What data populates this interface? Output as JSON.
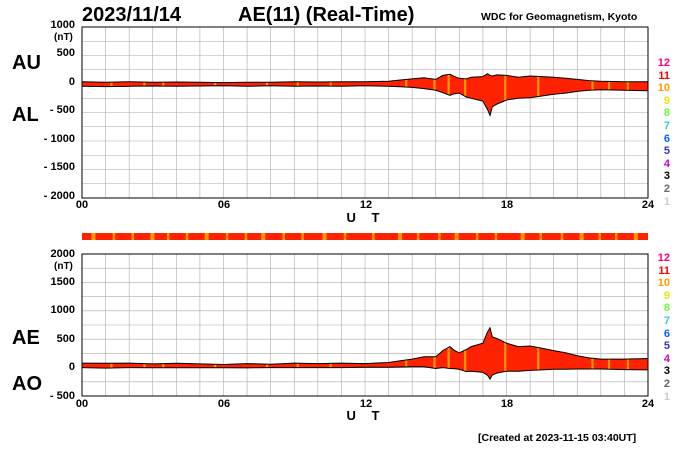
{
  "header": {
    "date": "2023/11/14",
    "title": "AE(11) (Real-Time)",
    "source": "WDC for Geomagnetism, Kyoto",
    "created": "[Created at 2023-11-15 03:40UT]"
  },
  "legend": {
    "items": [
      "12",
      "11",
      "10",
      "9",
      "8",
      "7",
      "6",
      "5",
      "4",
      "3",
      "2",
      "1"
    ],
    "colors": [
      "#ff0080",
      "#ff0000",
      "#ff9900",
      "#e6e600",
      "#66ff33",
      "#33cccc",
      "#0066ff",
      "#3333cc",
      "#cc00cc",
      "#000000",
      "#666666",
      "#cccccc"
    ]
  },
  "colors": {
    "fill_primary": "#ff2200",
    "fill_secondary": "#ff9900",
    "outline": "#000000",
    "grid": "#aaaaaa"
  },
  "chart_data": [
    {
      "type": "area",
      "name": "AU/AL",
      "series_labels": [
        "AU",
        "AL"
      ],
      "unit": "(nT)",
      "xlabel": "U T",
      "xlim": [
        0,
        24
      ],
      "x_tick_labels": [
        "00",
        "06",
        "12",
        "18",
        "24"
      ],
      "ylim": [
        -2000,
        1000
      ],
      "y_tick_labels": [
        "1000",
        "500",
        "0",
        "- 500",
        "- 1000",
        "- 1500",
        "- 2000"
      ],
      "x": [
        0,
        1,
        2,
        3,
        4,
        5,
        6,
        7,
        8,
        9,
        10,
        11,
        12,
        13,
        13.5,
        14,
        14.5,
        15,
        15.3,
        15.6,
        15.8,
        16,
        16.3,
        16.5,
        17,
        17.2,
        17.3,
        17.4,
        17.6,
        18,
        18.5,
        19,
        19.5,
        20,
        20.5,
        21,
        21.5,
        22,
        23,
        24
      ],
      "series": [
        {
          "name": "AU",
          "values": [
            40,
            30,
            40,
            30,
            35,
            30,
            25,
            30,
            30,
            40,
            35,
            40,
            40,
            50,
            70,
            90,
            110,
            80,
            150,
            170,
            130,
            100,
            90,
            120,
            130,
            180,
            150,
            140,
            160,
            150,
            120,
            140,
            130,
            120,
            100,
            80,
            60,
            50,
            40,
            40
          ]
        },
        {
          "name": "AL",
          "values": [
            -40,
            -45,
            -40,
            -35,
            -40,
            -35,
            -30,
            -40,
            -30,
            -40,
            -35,
            -40,
            -30,
            -40,
            -50,
            -60,
            -80,
            -110,
            -150,
            -200,
            -170,
            -160,
            -230,
            -250,
            -300,
            -450,
            -550,
            -400,
            -350,
            -280,
            -250,
            -240,
            -210,
            -180,
            -160,
            -130,
            -110,
            -100,
            -110,
            -120
          ]
        }
      ]
    },
    {
      "type": "area",
      "name": "AE/AO",
      "series_labels": [
        "AE",
        "AO"
      ],
      "unit": "(nT)",
      "xlabel": "U T",
      "xlim": [
        0,
        24
      ],
      "x_tick_labels": [
        "00",
        "06",
        "12",
        "18",
        "24"
      ],
      "ylim": [
        -500,
        2000
      ],
      "y_tick_labels": [
        "2000",
        "1500",
        "1000",
        "500",
        "0",
        "- 500"
      ],
      "x": [
        0,
        1,
        2,
        3,
        4,
        5,
        6,
        7,
        8,
        9,
        10,
        11,
        12,
        13,
        13.5,
        14,
        14.5,
        15,
        15.3,
        15.6,
        15.8,
        16,
        16.3,
        16.5,
        17,
        17.2,
        17.3,
        17.4,
        17.6,
        18,
        18.5,
        19,
        19.5,
        20,
        20.5,
        21,
        21.5,
        22,
        23,
        24
      ],
      "series": [
        {
          "name": "AE",
          "values": [
            80,
            75,
            80,
            65,
            75,
            65,
            55,
            70,
            60,
            80,
            70,
            80,
            70,
            90,
            120,
            150,
            190,
            190,
            300,
            370,
            300,
            260,
            320,
            370,
            430,
            630,
            700,
            540,
            510,
            430,
            370,
            380,
            340,
            300,
            260,
            210,
            170,
            150,
            150,
            160
          ]
        },
        {
          "name": "AO",
          "values": [
            0,
            -8,
            0,
            -3,
            -3,
            -3,
            -3,
            -5,
            0,
            0,
            0,
            0,
            5,
            5,
            10,
            15,
            15,
            -15,
            0,
            -15,
            -20,
            -30,
            -70,
            -65,
            -85,
            -135,
            -200,
            -130,
            -95,
            -65,
            -65,
            -50,
            -40,
            -30,
            -30,
            -25,
            -25,
            -25,
            -35,
            -40
          ]
        }
      ]
    }
  ],
  "axis_labels": {
    "upper_top": "AU",
    "upper_bottom": "AL",
    "lower_top": "AE",
    "lower_bottom": "AO"
  }
}
